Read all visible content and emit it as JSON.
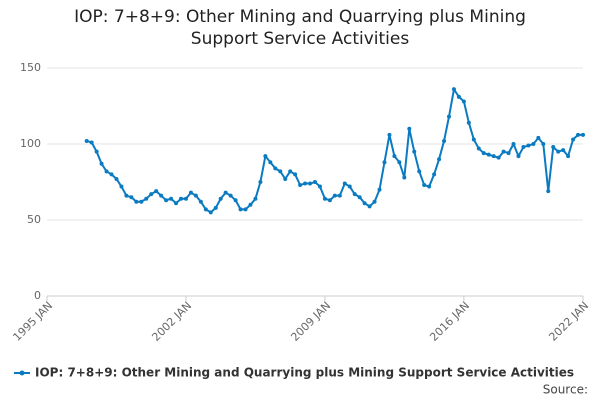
{
  "chart_data": {
    "type": "line",
    "title": "IOP: 7+8+9: Other Mining and Quarrying plus Mining Support Service Activities",
    "source": "Source:",
    "x": [
      "1997 JAN",
      "1997 APR",
      "1997 JUL",
      "1997 OCT",
      "1998 JAN",
      "1998 APR",
      "1998 JUL",
      "1998 OCT",
      "1999 JAN",
      "1999 APR",
      "1999 JUL",
      "1999 OCT",
      "2000 JAN",
      "2000 APR",
      "2000 JUL",
      "2000 OCT",
      "2001 JAN",
      "2001 APR",
      "2001 JUL",
      "2001 OCT",
      "2002 JAN",
      "2002 APR",
      "2002 JUL",
      "2002 OCT",
      "2003 JAN",
      "2003 APR",
      "2003 JUL",
      "2003 OCT",
      "2004 JAN",
      "2004 APR",
      "2004 JUL",
      "2004 OCT",
      "2005 JAN",
      "2005 APR",
      "2005 JUL",
      "2005 OCT",
      "2006 JAN",
      "2006 APR",
      "2006 JUL",
      "2006 OCT",
      "2007 JAN",
      "2007 APR",
      "2007 JUL",
      "2007 OCT",
      "2008 JAN",
      "2008 APR",
      "2008 JUL",
      "2008 OCT",
      "2009 JAN",
      "2009 APR",
      "2009 JUL",
      "2009 OCT",
      "2010 JAN",
      "2010 APR",
      "2010 JUL",
      "2010 OCT",
      "2011 JAN",
      "2011 APR",
      "2011 JUL",
      "2011 OCT",
      "2012 JAN",
      "2012 APR",
      "2012 JUL",
      "2012 OCT",
      "2013 JAN",
      "2013 APR",
      "2013 JUL",
      "2013 OCT",
      "2014 JAN",
      "2014 APR",
      "2014 JUL",
      "2014 OCT",
      "2015 JAN",
      "2015 APR",
      "2015 JUL",
      "2015 OCT",
      "2016 JAN",
      "2016 APR",
      "2016 JUL",
      "2016 OCT",
      "2017 JAN",
      "2017 APR",
      "2017 JUL",
      "2017 OCT",
      "2018 JAN",
      "2018 APR",
      "2018 JUL",
      "2018 OCT",
      "2019 JAN",
      "2019 APR",
      "2019 JUL",
      "2019 OCT",
      "2020 JAN",
      "2020 APR",
      "2020 JUL",
      "2020 OCT",
      "2021 JAN",
      "2021 APR",
      "2021 JUL",
      "2021 OCT",
      "2022 JAN"
    ],
    "series": [
      {
        "name": "IOP: 7+8+9: Other Mining and Quarrying plus Mining Support Service Activities",
        "color": "#0a7bc1",
        "values": [
          102,
          101,
          95,
          87,
          82,
          80,
          77,
          72,
          66,
          65,
          62,
          62,
          64,
          67,
          69,
          66,
          63,
          64,
          61,
          64,
          64,
          68,
          66,
          62,
          57,
          55,
          58,
          64,
          68,
          66,
          63,
          57,
          57,
          60,
          64,
          75,
          92,
          88,
          84,
          82,
          77,
          82,
          80,
          73,
          74,
          74,
          75,
          72,
          64,
          63,
          66,
          66,
          74,
          72,
          67,
          65,
          61,
          59,
          62,
          70,
          88,
          106,
          92,
          88,
          78,
          110,
          95,
          82,
          73,
          72,
          80,
          90,
          102,
          118,
          136,
          131,
          128,
          114,
          103,
          97,
          94,
          93,
          92,
          91,
          95,
          94,
          100,
          92,
          98,
          99,
          100,
          104,
          100,
          69,
          98,
          95,
          96,
          92,
          103,
          106,
          106
        ]
      }
    ],
    "xlim": [
      "1995 JAN",
      "2022 JAN"
    ],
    "xticks": [
      "1995 JAN",
      "2002 JAN",
      "2009 JAN",
      "2016 JAN",
      "2022 JAN"
    ],
    "ylim": [
      0,
      150
    ],
    "yticks": [
      0,
      50,
      100,
      150
    ],
    "grid": true
  }
}
